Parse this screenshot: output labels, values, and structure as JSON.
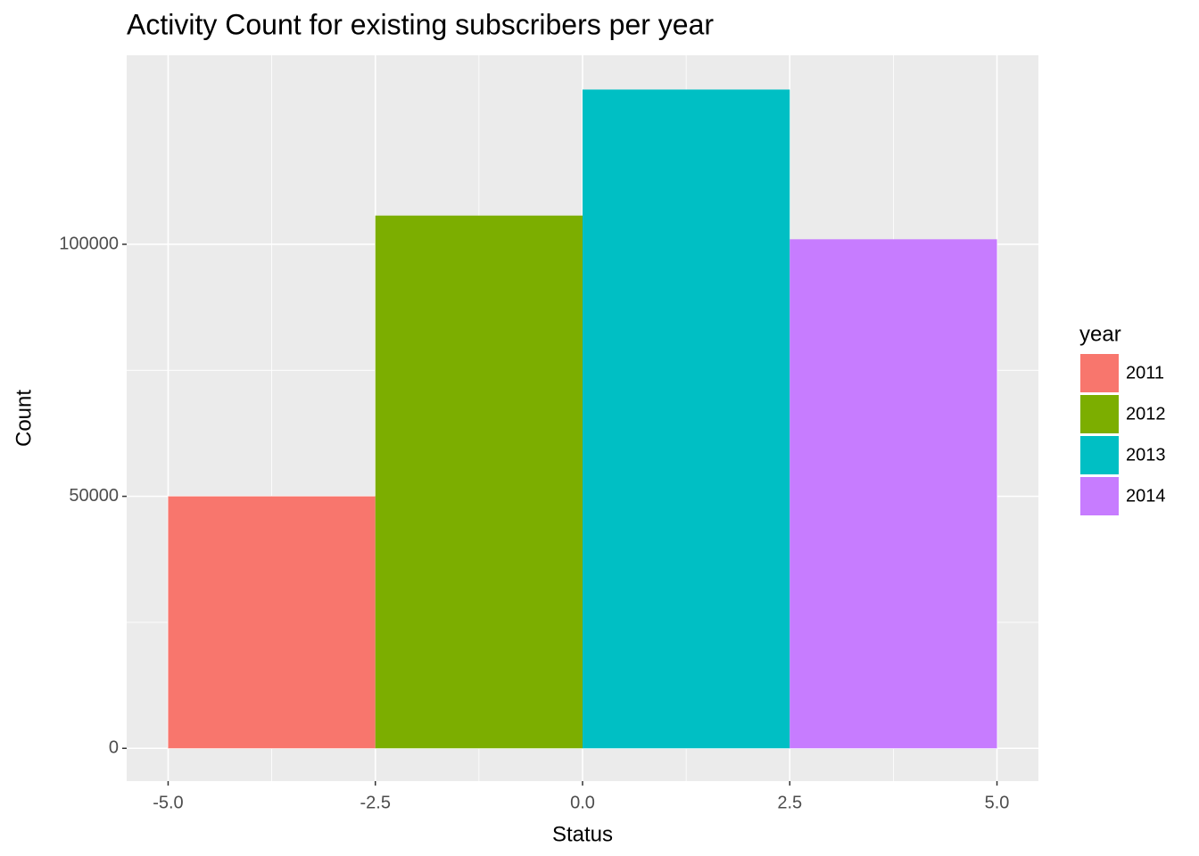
{
  "chart_data": {
    "type": "histogram",
    "title": "Activity Count for existing subscribers per year",
    "x_label": "Status",
    "y_label": "Count",
    "bins": [
      -5,
      -2.5,
      0,
      2.5,
      5
    ],
    "values": [
      50000,
      105700,
      130700,
      101000
    ],
    "categories": [
      "2011",
      "2012",
      "2013",
      "2014"
    ],
    "colors": [
      "#f8766d",
      "#7cae00",
      "#00bfc4",
      "#c77cff"
    ],
    "legend_title": "year",
    "legend": "right",
    "xlim": [
      -5.5,
      5.5
    ],
    "xticks": [
      {
        "value": -5,
        "label": "-5.0"
      },
      {
        "value": -2.5,
        "label": "-2.5"
      },
      {
        "value": 0,
        "label": "0.0"
      },
      {
        "value": 2.5,
        "label": "2.5"
      },
      {
        "value": 5,
        "label": "5.0"
      }
    ],
    "ylim": [
      -6500,
      137500
    ],
    "yticks": [
      0,
      50000,
      100000
    ],
    "grid": true
  }
}
